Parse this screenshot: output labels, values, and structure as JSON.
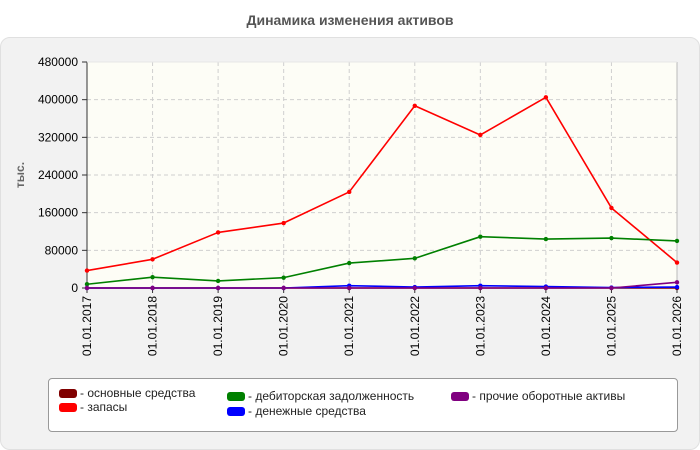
{
  "chart_data": {
    "type": "line",
    "title": "Динамика изменения активов",
    "ylabel": "тыс.",
    "xlabel": "",
    "ylim": [
      0,
      480000
    ],
    "yticks": [
      "0",
      "80000",
      "160000",
      "240000",
      "320000",
      "400000",
      "480000"
    ],
    "categories": [
      "01.01.2017",
      "01.01.2018",
      "01.01.2019",
      "01.01.2020",
      "01.01.2021",
      "01.01.2022",
      "01.01.2023",
      "01.01.2024",
      "01.01.2025",
      "01.01.2026"
    ],
    "grid": true,
    "legend_position": "bottom",
    "series": [
      {
        "name": "- основные средства",
        "color": "#800000",
        "values": [
          0,
          0,
          0,
          0,
          0,
          0,
          0,
          0,
          0,
          0
        ]
      },
      {
        "name": "- запасы",
        "color": "#ff0000",
        "values": [
          37000,
          61000,
          118000,
          138000,
          204000,
          387000,
          325000,
          405000,
          170000,
          54000
        ]
      },
      {
        "name": "- дебиторская задолженность",
        "color": "#008000",
        "values": [
          8000,
          23000,
          15000,
          22000,
          53000,
          63000,
          109000,
          104000,
          106000,
          100000
        ]
      },
      {
        "name": "- денежные средства",
        "color": "#0000ff",
        "values": [
          0,
          0,
          0,
          0,
          5000,
          2000,
          5000,
          3000,
          1000,
          2000
        ]
      },
      {
        "name": "- прочие оборотные активы",
        "color": "#800080",
        "values": [
          0,
          0,
          0,
          0,
          0,
          0,
          0,
          0,
          0,
          12000
        ]
      }
    ]
  }
}
